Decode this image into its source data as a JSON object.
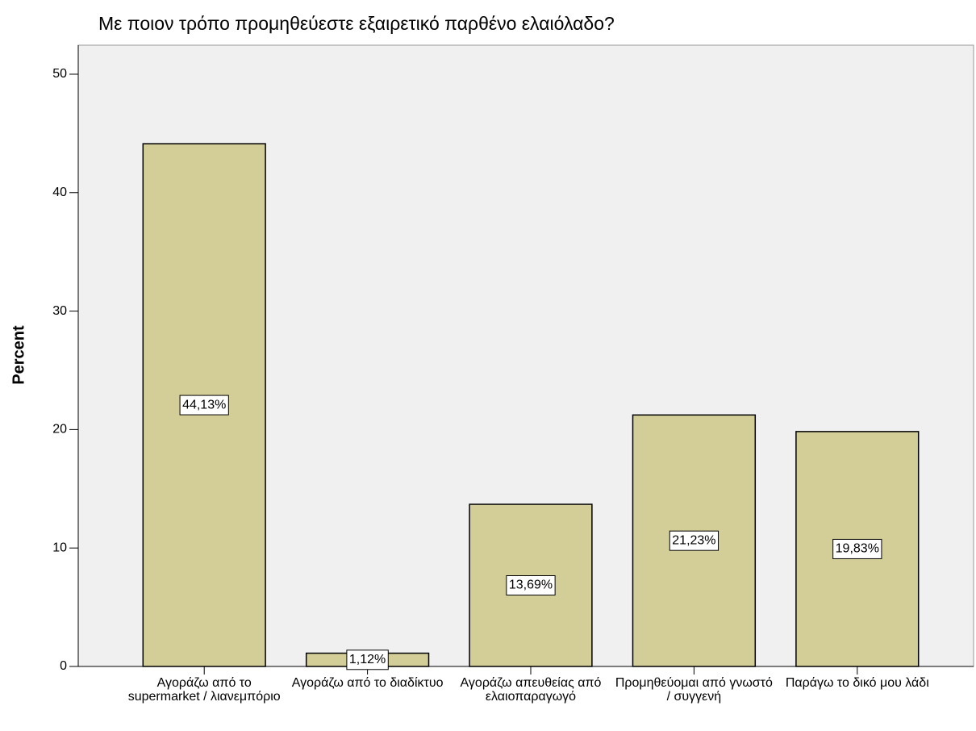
{
  "chart_data": {
    "type": "bar",
    "title": "Με ποιον τρόπο προμηθεύεστε εξαιρετικό παρθένο ελαιόλαδο?",
    "y_label": "Percent",
    "categories": [
      "Αγοράζω από το supermarket / λιανεμπόριο",
      "Αγοράζω από το διαδίκτυο",
      "Αγοράζω απευθείας από ελαιοπαραγωγό",
      "Προμηθεύομαι από γνωστό / συγγενή",
      "Παράγω το δικό μου λάδι"
    ],
    "values": [
      44.13,
      1.12,
      13.69,
      21.23,
      19.83
    ],
    "value_labels": [
      "44,13%",
      "1,12%",
      "13,69%",
      "21,23%",
      "19,83%"
    ],
    "color": "#d3ce97",
    "ylim": [
      0,
      52.45
    ],
    "yticks": [
      0,
      10,
      20,
      30,
      40,
      50
    ]
  }
}
